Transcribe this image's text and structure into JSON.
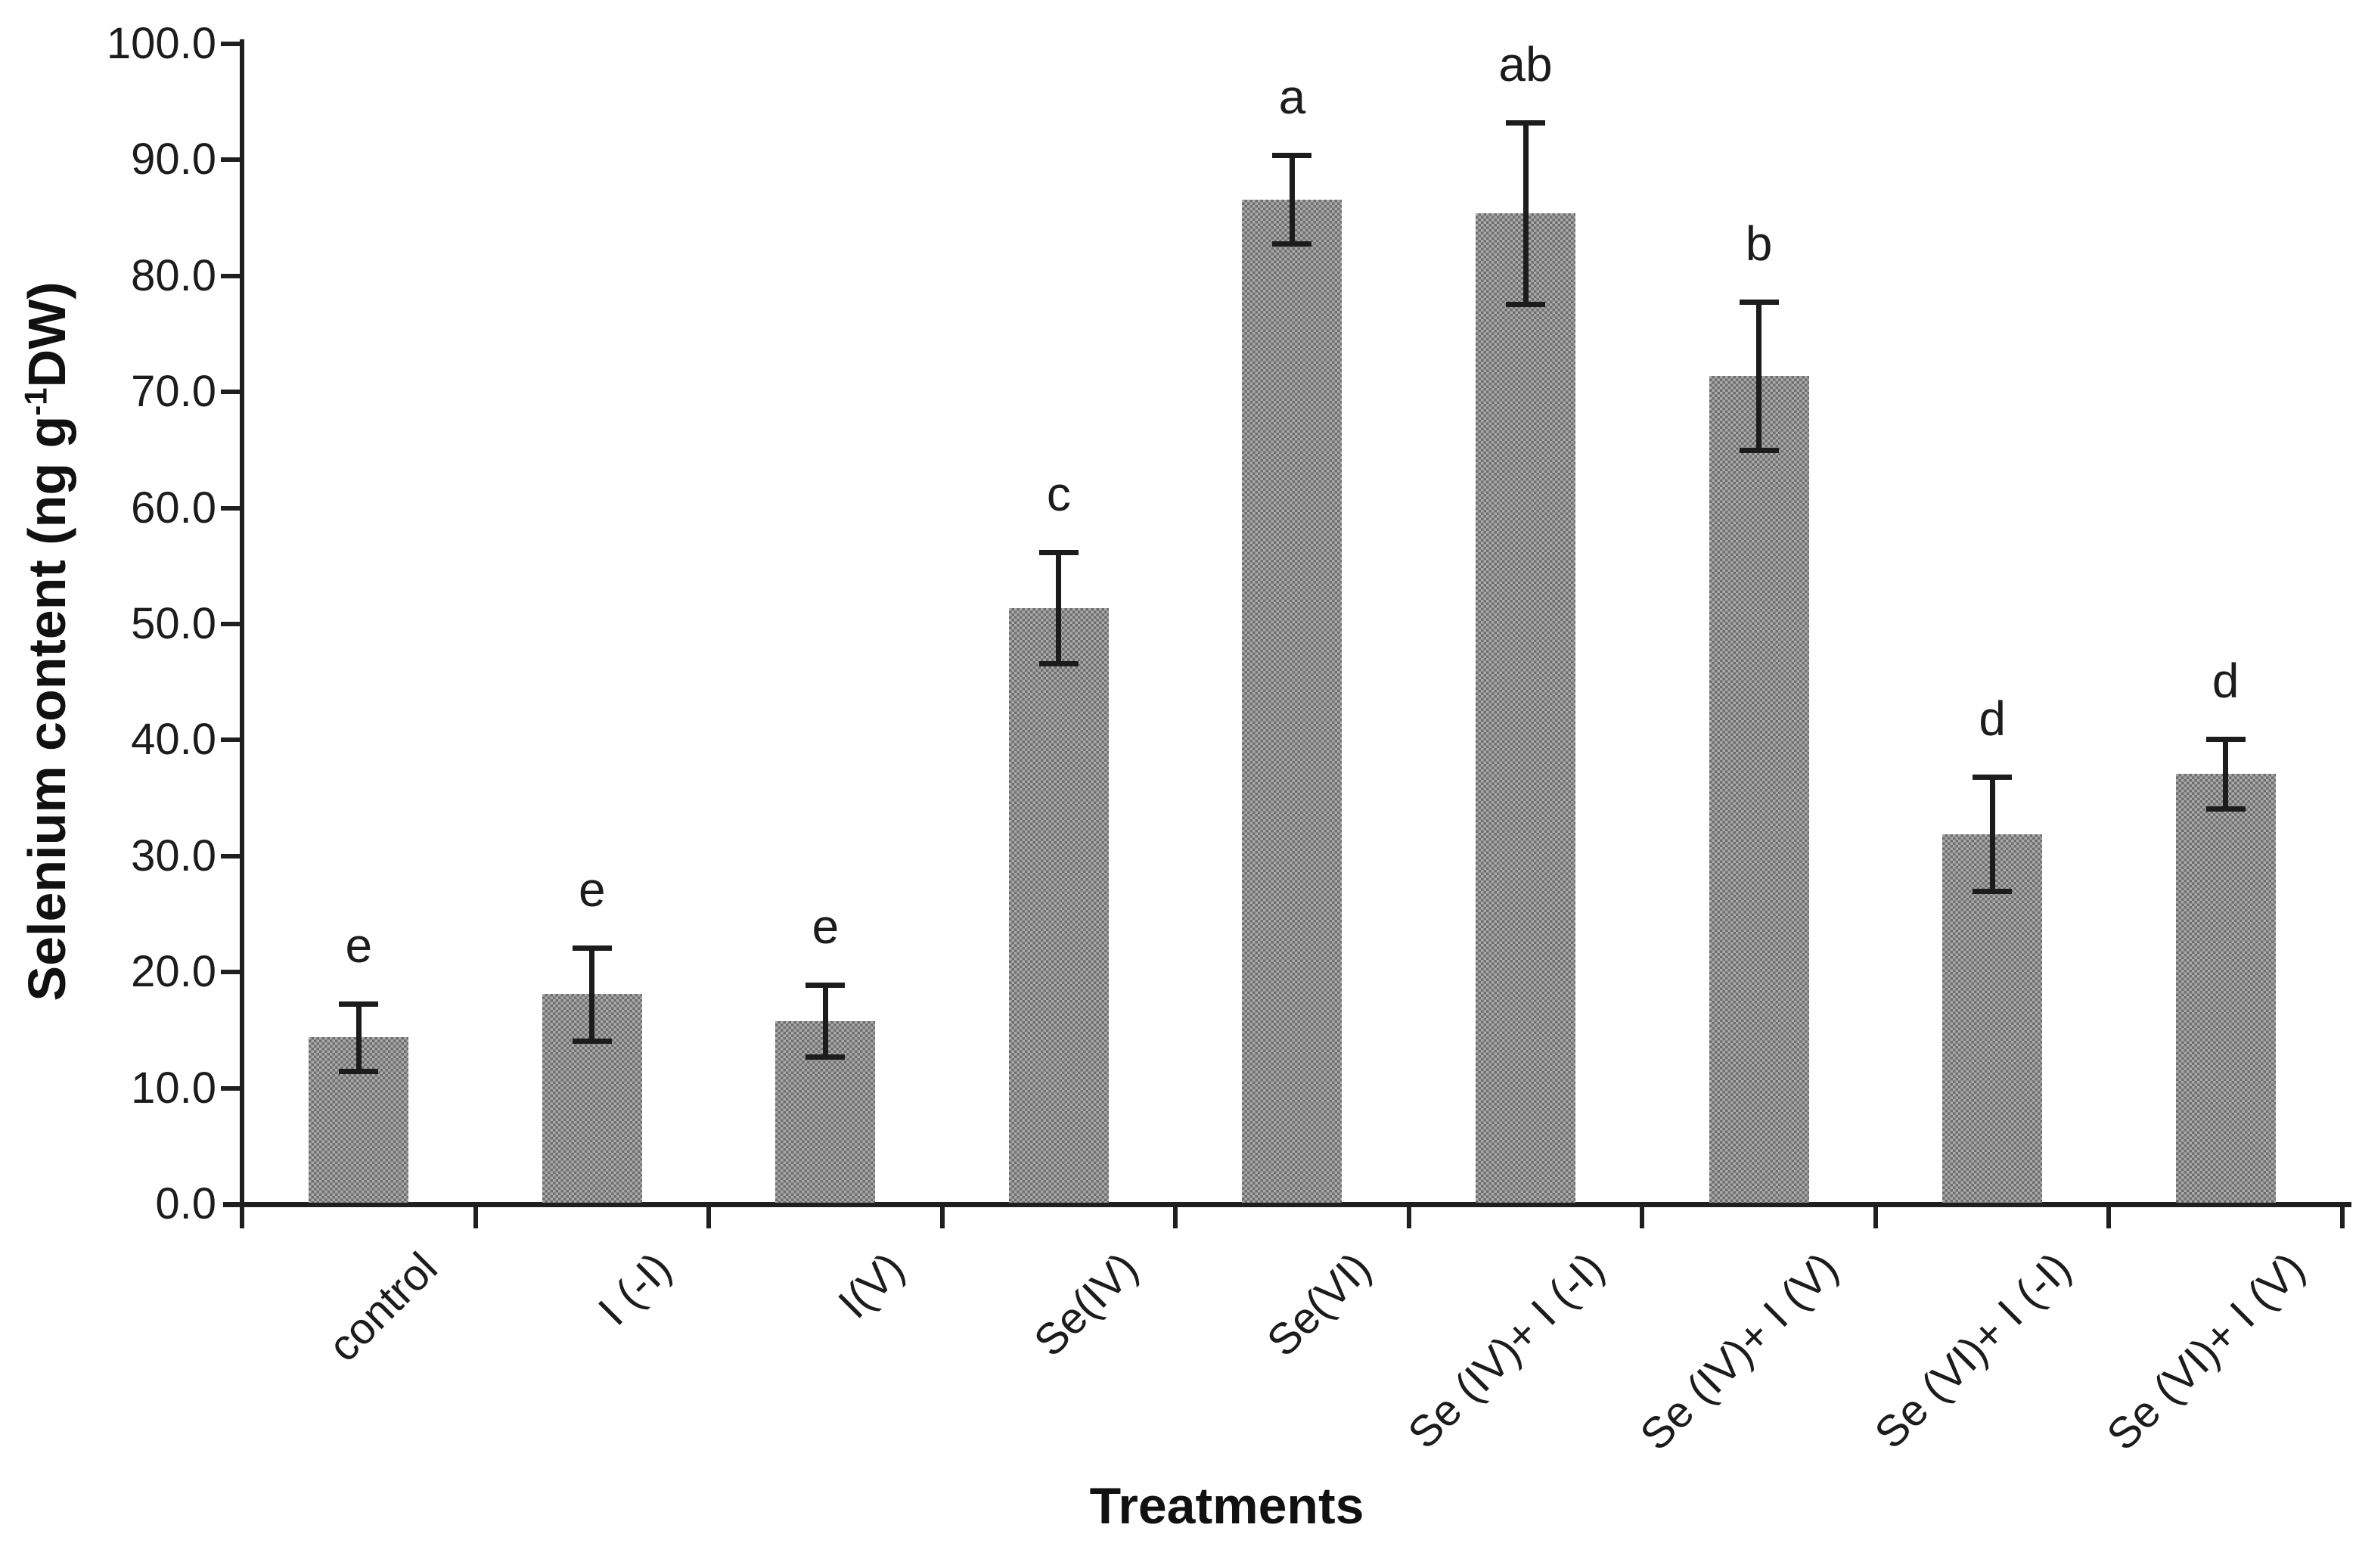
{
  "figure": {
    "background": "#ffffff",
    "ink_color": "#1c1c1c",
    "bar_fill_dark": "#6e6e6e",
    "bar_fill_light": "#aaaaaa"
  },
  "chart_data": {
    "type": "bar",
    "title": "",
    "xlabel": "Treatments",
    "ylabel_prefix": "Selenium content (ng g",
    "ylabel_superscript": "-1",
    "ylabel_suffix": "DW)",
    "ylim": [
      0,
      100
    ],
    "ytick_step": 10,
    "ytick_labels": [
      "100.0",
      "90.0",
      "80.0",
      "70.0",
      "60.0",
      "50.0",
      "40.0",
      "30.0",
      "20.0",
      "10.0",
      "0.0"
    ],
    "grid": false,
    "legend_position": "none",
    "categories": [
      "control",
      "I (-I)",
      "I(V)",
      "Se(IV)",
      "Se(VI)",
      "Se (IV)+ I (-I)",
      "Se (IV)+ I (V)",
      "Se (VI)+ I (-I)",
      "Se (VI)+ I (V)"
    ],
    "series": [
      {
        "name": "Selenium content",
        "values": [
          14.4,
          18.1,
          15.8,
          51.4,
          86.6,
          85.4,
          71.4,
          31.9,
          37.1
        ],
        "error_bars": [
          2.9,
          4.0,
          3.1,
          4.8,
          3.8,
          7.8,
          6.4,
          4.9,
          3.0
        ]
      }
    ],
    "significance_letters": [
      "e",
      "e",
      "e",
      "c",
      "a",
      "ab",
      "b",
      "d",
      "d"
    ]
  }
}
